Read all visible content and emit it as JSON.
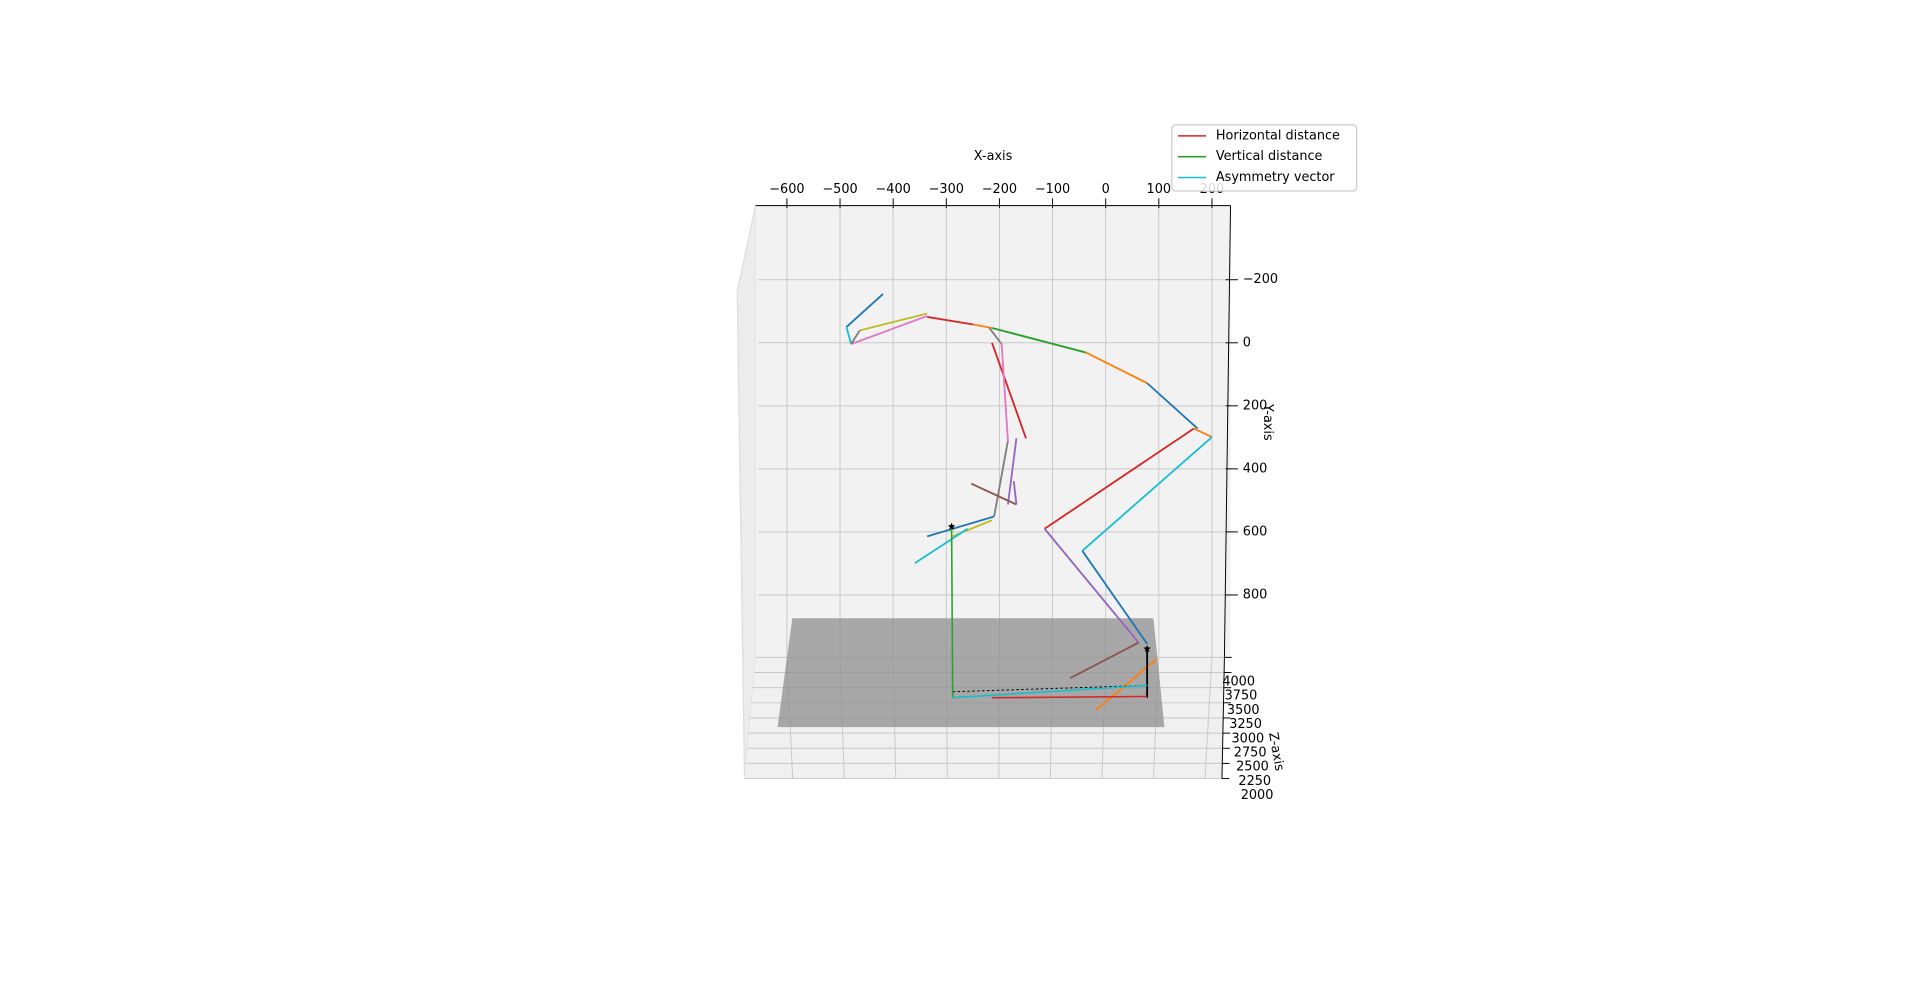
{
  "chart_data": {
    "type": "line3d",
    "xlabel": "X-axis",
    "ylabel": "Y-axis",
    "zlabel": "Z-axis",
    "xlim": [
      -659,
      235
    ],
    "ylim": [
      -435,
      998
    ],
    "zlim": [
      2000,
      4000
    ],
    "xticks": [
      {
        "value": -600,
        "label": "−600"
      },
      {
        "value": -500,
        "label": "−500"
      },
      {
        "value": -400,
        "label": "−400"
      },
      {
        "value": -300,
        "label": "−300"
      },
      {
        "value": -200,
        "label": "−200"
      },
      {
        "value": -100,
        "label": "−100"
      },
      0,
      100,
      200
    ],
    "yticks": [
      {
        "value": -200,
        "label": "−200"
      },
      0,
      200,
      400,
      600,
      800
    ],
    "zticks": [
      4000,
      3750,
      3500,
      3250,
      3000,
      2750,
      2500,
      2250,
      2000
    ],
    "grid": true,
    "legend": "upper right",
    "series": [
      {
        "name": "Horizontal distance",
        "color": "#d62728",
        "x": [
          -214,
          78
        ],
        "values": [
          1126,
          1122
        ]
      },
      {
        "name": "Vertical distance",
        "color": "#2ca02c",
        "x": [
          -290,
          -288
        ],
        "values": [
          590,
          1126
        ]
      },
      {
        "name": "Asymmetry vector",
        "color": "#17becf",
        "x": [
          -288,
          78
        ],
        "values": [
          1126,
          1087
        ]
      }
    ],
    "segments": [
      {
        "color": "#1f77b4",
        "x": [
          -488,
          -419
        ],
        "values": [
          -50,
          -155
        ]
      },
      {
        "color": "#bcbd22",
        "x": [
          -463,
          -336
        ],
        "values": [
          -39,
          -93
        ]
      },
      {
        "color": "#d62728",
        "x": [
          -336,
          -249
        ],
        "values": [
          -82,
          -58
        ]
      },
      {
        "color": "#ff7f0e",
        "x": [
          -249,
          -214
        ],
        "values": [
          -58,
          -47
        ]
      },
      {
        "color": "#2ca02c",
        "x": [
          -214,
          -37
        ],
        "values": [
          -47,
          31
        ]
      },
      {
        "color": "#ff7f0e",
        "x": [
          -37,
          78
        ],
        "values": [
          31,
          128
        ]
      },
      {
        "color": "#1f77b4",
        "x": [
          78,
          173
        ],
        "values": [
          128,
          272
        ]
      },
      {
        "color": "#ff7f0e",
        "x": [
          166,
          200
        ],
        "values": [
          272,
          299
        ]
      },
      {
        "color": "#17becf",
        "x": [
          200,
          -44
        ],
        "values": [
          299,
          660
        ]
      },
      {
        "color": "#1f77b4",
        "x": [
          -44,
          78
        ],
        "values": [
          660,
          955
        ]
      },
      {
        "color": "#d62728",
        "x": [
          166,
          -115
        ],
        "values": [
          272,
          590
        ]
      },
      {
        "color": "#9467bd",
        "x": [
          -115,
          62
        ],
        "values": [
          590,
          951
        ]
      },
      {
        "color": "#8c564b",
        "x": [
          62,
          -67
        ],
        "values": [
          951,
          1064
        ]
      },
      {
        "color": "#ff7f0e",
        "x": [
          97,
          -18
        ],
        "values": [
          1002,
          1165
        ]
      },
      {
        "color": "#e377c2",
        "x": [
          -479,
          -336
        ],
        "values": [
          4,
          -85
        ]
      },
      {
        "color": "#17becf",
        "x": [
          -488,
          -479
        ],
        "values": [
          -50,
          4
        ]
      },
      {
        "color": "#7f7f7f",
        "x": [
          -479,
          -463
        ],
        "values": [
          4,
          -39
        ]
      },
      {
        "color": "#7f7f7f",
        "x": [
          -219,
          -196
        ],
        "values": [
          -47,
          4
        ]
      },
      {
        "color": "#d62728",
        "x": [
          -214,
          -150
        ],
        "values": [
          0,
          303
        ]
      },
      {
        "color": "#e377c2",
        "x": [
          -196,
          -184
        ],
        "values": [
          0,
          311
        ]
      },
      {
        "color": "#7f7f7f",
        "x": [
          -184,
          -210
        ],
        "values": [
          311,
          551
        ]
      },
      {
        "color": "#9467bd",
        "x": [
          -168,
          -184
        ],
        "values": [
          303,
          513
        ]
      },
      {
        "color": "#8c564b",
        "x": [
          -253,
          -168
        ],
        "values": [
          447,
          513
        ]
      },
      {
        "color": "#9467bd",
        "x": [
          -173,
          -168
        ],
        "values": [
          439,
          513
        ]
      },
      {
        "color": "#1f77b4",
        "x": [
          -210,
          -336
        ],
        "values": [
          551,
          614
        ]
      },
      {
        "color": "#bcbd22",
        "x": [
          -288,
          -214
        ],
        "values": [
          614,
          563
        ]
      },
      {
        "color": "#17becf",
        "x": [
          -359,
          -260
        ],
        "values": [
          699,
          590
        ]
      },
      {
        "color": "#000000",
        "x": [
          -288,
          78
        ],
        "values": [
          1107,
          1087
        ],
        "dashed": true
      },
      {
        "color": "#000000",
        "x": [
          78,
          78
        ],
        "values": [
          971,
          1126
        ]
      }
    ],
    "markers": {
      "color": "#000000",
      "x": [
        -290,
        78
      ],
      "values": [
        583,
        971
      ]
    }
  }
}
